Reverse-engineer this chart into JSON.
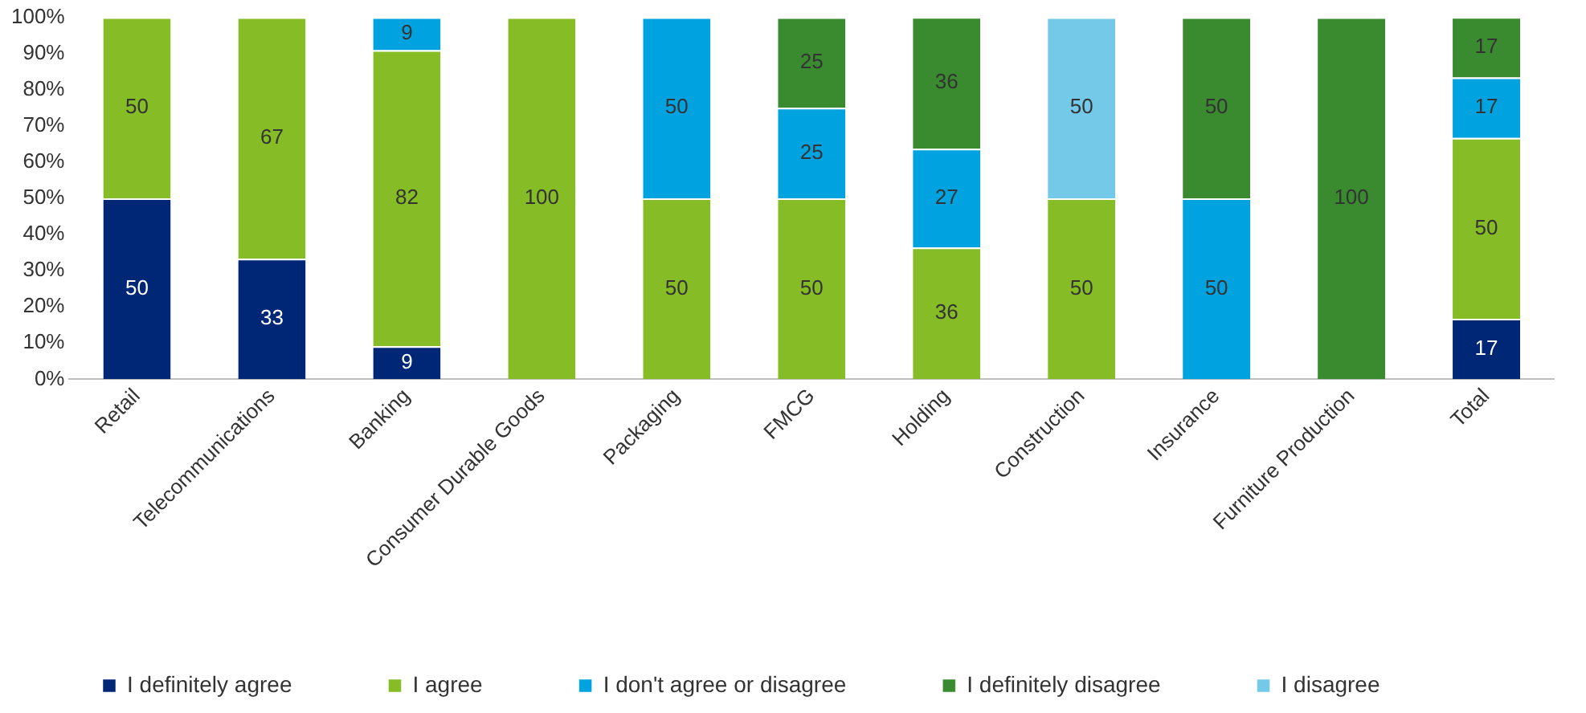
{
  "chart_data": {
    "type": "bar",
    "stacked": true,
    "grid": false,
    "legend": "bottom",
    "categories": [
      "Retail",
      "Telecommunications",
      "Banking",
      "Consumer Durable Goods",
      "Packaging",
      "FMCG",
      "Holding",
      "Construction",
      "Insurance",
      "Furniture Production",
      "Total"
    ],
    "ylim": [
      0,
      100
    ],
    "yticks": [
      {
        "value": 0,
        "label": "0%"
      },
      {
        "value": 10,
        "label": "10%"
      },
      {
        "value": 20,
        "label": "20%"
      },
      {
        "value": 30,
        "label": "30%"
      },
      {
        "value": 40,
        "label": "40%"
      },
      {
        "value": 50,
        "label": "50%"
      },
      {
        "value": 60,
        "label": "60%"
      },
      {
        "value": 70,
        "label": "70%"
      },
      {
        "value": 80,
        "label": "80%"
      },
      {
        "value": 90,
        "label": "90%"
      },
      {
        "value": 100,
        "label": "100%"
      }
    ],
    "series": [
      {
        "name": "I definitely agree",
        "color": "#002776",
        "values": [
          50,
          33.3,
          9.1,
          0,
          0,
          0,
          0,
          0,
          0,
          0,
          16.7
        ],
        "value_labels": [
          "50",
          "33",
          "9",
          null,
          null,
          null,
          null,
          null,
          null,
          null,
          "17"
        ]
      },
      {
        "name": "I agree",
        "color": "#86bc25",
        "values": [
          50,
          66.7,
          81.8,
          100,
          50,
          50,
          36.4,
          50,
          0,
          0,
          50
        ],
        "value_labels": [
          "50",
          "67",
          "82",
          "100",
          "50",
          "50",
          "36",
          "50",
          null,
          null,
          "50"
        ]
      },
      {
        "name": "I don't agree or disagree",
        "color": "#00a3e0",
        "values": [
          0,
          0,
          9.1,
          0,
          50,
          25,
          27.3,
          0,
          50,
          0,
          16.7
        ],
        "value_labels": [
          null,
          null,
          "9",
          null,
          "50",
          "25",
          "27",
          null,
          "50",
          null,
          "17"
        ]
      },
      {
        "name": "I definitely disagree",
        "color": "#3a8b2f",
        "values": [
          0,
          0,
          0,
          0,
          0,
          25,
          36.4,
          0,
          50,
          100,
          16.7
        ],
        "value_labels": [
          null,
          null,
          null,
          null,
          null,
          "25",
          "36",
          null,
          "50",
          "100",
          "17"
        ]
      },
      {
        "name": "I disagree",
        "color": "#75c9e8",
        "values": [
          0,
          0,
          0,
          0,
          0,
          0,
          0,
          50,
          0,
          0,
          0
        ],
        "value_labels": [
          null,
          null,
          null,
          null,
          null,
          null,
          null,
          "50",
          null,
          null,
          null
        ]
      }
    ]
  }
}
